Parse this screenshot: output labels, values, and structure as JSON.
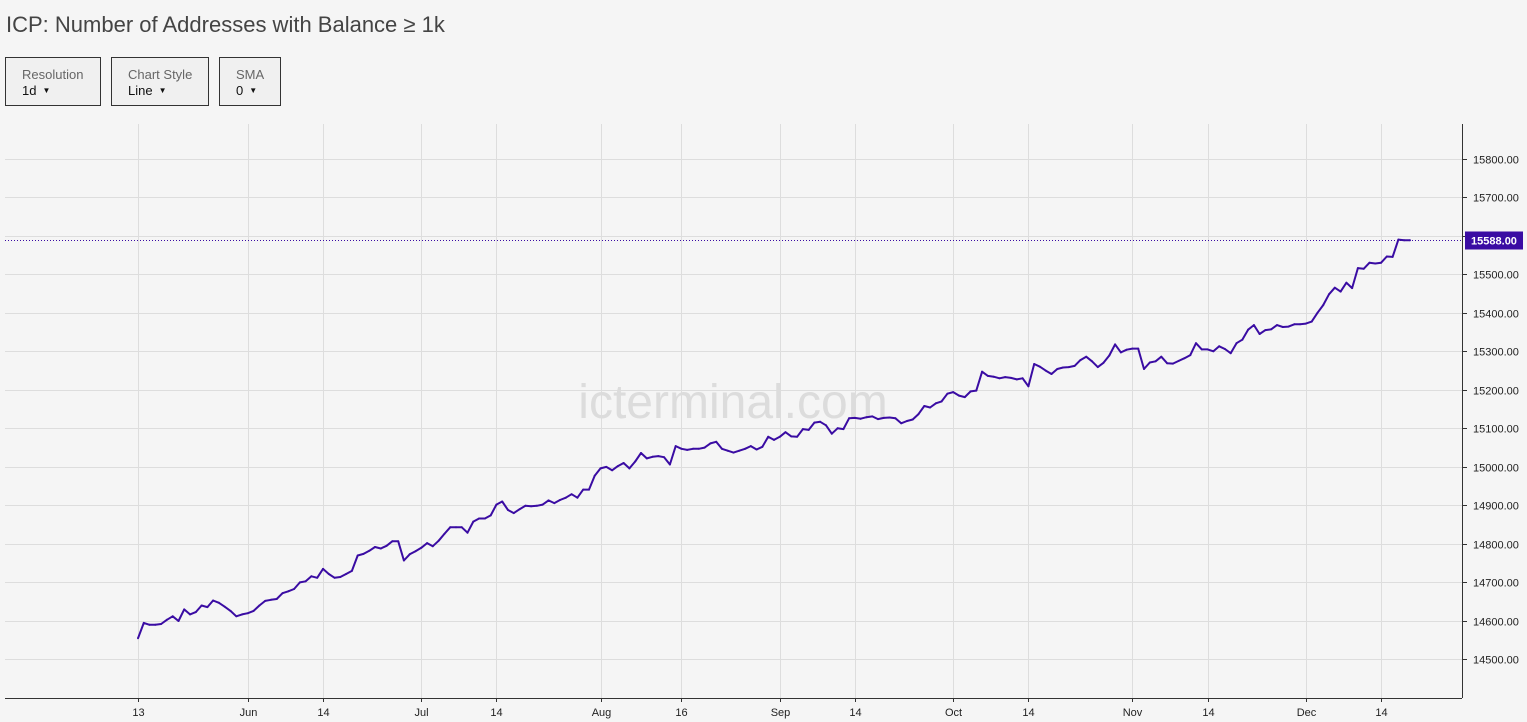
{
  "title": "ICP: Number of Addresses with Balance ≥ 1k",
  "controls": [
    {
      "label": "Resolution",
      "value": "1d"
    },
    {
      "label": "Chart Style",
      "value": "Line"
    },
    {
      "label": "SMA",
      "value": "0"
    }
  ],
  "watermark": "icterminal.com",
  "colors": {
    "line": "#3a0ca3",
    "current_label_bg": "#3a0ca3",
    "grid": "#dddddd"
  },
  "chart_data": {
    "type": "line",
    "title": "ICP: Number of Addresses with Balance ≥ 1k",
    "x_ticks": [
      {
        "day": 0,
        "label": "13"
      },
      {
        "day": 19,
        "label": "Jun"
      },
      {
        "day": 32,
        "label": "14"
      },
      {
        "day": 49,
        "label": "Jul"
      },
      {
        "day": 62,
        "label": "14"
      },
      {
        "day": 80,
        "label": "Aug"
      },
      {
        "day": 94,
        "label": "16"
      },
      {
        "day": 111,
        "label": "Sep"
      },
      {
        "day": 124,
        "label": "14"
      },
      {
        "day": 141,
        "label": "Oct"
      },
      {
        "day": 154,
        "label": "14"
      },
      {
        "day": 172,
        "label": "Nov"
      },
      {
        "day": 185,
        "label": "14"
      },
      {
        "day": 202,
        "label": "Dec"
      },
      {
        "day": 215,
        "label": "14"
      }
    ],
    "y_ticks": [
      14500,
      14600,
      14700,
      14800,
      14900,
      15000,
      15100,
      15200,
      15300,
      15400,
      15500,
      15600,
      15700,
      15800
    ],
    "y_tick_labels": [
      "14500.00",
      "14600.00",
      "14700.00",
      "14800.00",
      "14900.00",
      "15000.00",
      "15100.00",
      "15200.00",
      "15300.00",
      "15400.00",
      "15500.00",
      "15600.00",
      "15700.00",
      "15800.00"
    ],
    "ylim": [
      14400,
      15890
    ],
    "xlim": [
      -23,
      229
    ],
    "current_value": 15588,
    "current_label": "15588.00",
    "grid": true,
    "series": [
      {
        "points": [
          [
            0,
            14555
          ],
          [
            1,
            14595
          ],
          [
            2,
            14590
          ],
          [
            3,
            14590
          ],
          [
            4,
            14592
          ],
          [
            5,
            14603
          ],
          [
            6,
            14612
          ],
          [
            7,
            14600
          ],
          [
            8,
            14630
          ],
          [
            9,
            14617
          ],
          [
            10,
            14623
          ],
          [
            11,
            14640
          ],
          [
            12,
            14636
          ],
          [
            13,
            14653
          ],
          [
            14,
            14647
          ],
          [
            15,
            14637
          ],
          [
            16,
            14626
          ],
          [
            17,
            14612
          ],
          [
            18,
            14617
          ],
          [
            19,
            14620
          ],
          [
            20,
            14626
          ],
          [
            21,
            14640
          ],
          [
            22,
            14652
          ],
          [
            23,
            14655
          ],
          [
            24,
            14657
          ],
          [
            25,
            14672
          ],
          [
            26,
            14677
          ],
          [
            27,
            14683
          ],
          [
            28,
            14700
          ],
          [
            29,
            14703
          ],
          [
            30,
            14716
          ],
          [
            31,
            14712
          ],
          [
            32,
            14735
          ],
          [
            33,
            14722
          ],
          [
            34,
            14712
          ],
          [
            35,
            14714
          ],
          [
            36,
            14722
          ],
          [
            37,
            14730
          ],
          [
            38,
            14770
          ],
          [
            39,
            14774
          ],
          [
            40,
            14782
          ],
          [
            41,
            14792
          ],
          [
            42,
            14788
          ],
          [
            43,
            14795
          ],
          [
            44,
            14807
          ],
          [
            45,
            14807
          ],
          [
            46,
            14757
          ],
          [
            47,
            14773
          ],
          [
            48,
            14781
          ],
          [
            49,
            14790
          ],
          [
            50,
            14802
          ],
          [
            51,
            14794
          ],
          [
            52,
            14808
          ],
          [
            53,
            14826
          ],
          [
            54,
            14843
          ],
          [
            55,
            14843
          ],
          [
            56,
            14843
          ],
          [
            57,
            14829
          ],
          [
            58,
            14858
          ],
          [
            59,
            14866
          ],
          [
            60,
            14866
          ],
          [
            61,
            14874
          ],
          [
            62,
            14902
          ],
          [
            63,
            14910
          ],
          [
            64,
            14888
          ],
          [
            65,
            14880
          ],
          [
            66,
            14890
          ],
          [
            67,
            14899
          ],
          [
            68,
            14898
          ],
          [
            69,
            14899
          ],
          [
            70,
            14902
          ],
          [
            71,
            14913
          ],
          [
            72,
            14906
          ],
          [
            73,
            14914
          ],
          [
            74,
            14920
          ],
          [
            75,
            14929
          ],
          [
            76,
            14920
          ],
          [
            77,
            14941
          ],
          [
            78,
            14941
          ],
          [
            79,
            14977
          ],
          [
            80,
            14996
          ],
          [
            81,
            15000
          ],
          [
            82,
            14991
          ],
          [
            83,
            15002
          ],
          [
            84,
            15010
          ],
          [
            85,
            14996
          ],
          [
            86,
            15014
          ],
          [
            87,
            15036
          ],
          [
            88,
            15022
          ],
          [
            89,
            15026
          ],
          [
            90,
            15028
          ],
          [
            91,
            15025
          ],
          [
            92,
            15006
          ],
          [
            93,
            15054
          ],
          [
            94,
            15047
          ],
          [
            95,
            15044
          ],
          [
            96,
            15047
          ],
          [
            97,
            15047
          ],
          [
            98,
            15050
          ],
          [
            99,
            15061
          ],
          [
            100,
            15065
          ],
          [
            101,
            15047
          ],
          [
            102,
            15042
          ],
          [
            103,
            15037
          ],
          [
            104,
            15042
          ],
          [
            105,
            15047
          ],
          [
            106,
            15054
          ],
          [
            107,
            15045
          ],
          [
            108,
            15052
          ],
          [
            109,
            15078
          ],
          [
            110,
            15070
          ],
          [
            111,
            15078
          ],
          [
            112,
            15090
          ],
          [
            113,
            15079
          ],
          [
            114,
            15078
          ],
          [
            115,
            15098
          ],
          [
            116,
            15096
          ],
          [
            117,
            15115
          ],
          [
            118,
            15117
          ],
          [
            119,
            15108
          ],
          [
            120,
            15086
          ],
          [
            121,
            15100
          ],
          [
            122,
            15098
          ],
          [
            123,
            15126
          ],
          [
            124,
            15127
          ],
          [
            125,
            15125
          ],
          [
            126,
            15129
          ],
          [
            127,
            15131
          ],
          [
            128,
            15124
          ],
          [
            129,
            15127
          ],
          [
            130,
            15128
          ],
          [
            131,
            15126
          ],
          [
            132,
            15113
          ],
          [
            133,
            15119
          ],
          [
            134,
            15123
          ],
          [
            135,
            15137
          ],
          [
            136,
            15158
          ],
          [
            137,
            15154
          ],
          [
            138,
            15165
          ],
          [
            139,
            15170
          ],
          [
            140,
            15190
          ],
          [
            141,
            15194
          ],
          [
            142,
            15185
          ],
          [
            143,
            15181
          ],
          [
            144,
            15196
          ],
          [
            145,
            15198
          ],
          [
            146,
            15247
          ],
          [
            147,
            15236
          ],
          [
            148,
            15234
          ],
          [
            149,
            15230
          ],
          [
            150,
            15233
          ],
          [
            151,
            15231
          ],
          [
            152,
            15227
          ],
          [
            153,
            15230
          ],
          [
            154,
            15209
          ],
          [
            155,
            15267
          ],
          [
            156,
            15260
          ],
          [
            157,
            15250
          ],
          [
            158,
            15241
          ],
          [
            159,
            15254
          ],
          [
            160,
            15258
          ],
          [
            161,
            15259
          ],
          [
            162,
            15262
          ],
          [
            163,
            15277
          ],
          [
            164,
            15286
          ],
          [
            165,
            15274
          ],
          [
            166,
            15259
          ],
          [
            167,
            15270
          ],
          [
            168,
            15289
          ],
          [
            169,
            15318
          ],
          [
            170,
            15297
          ],
          [
            171,
            15304
          ],
          [
            172,
            15307
          ],
          [
            173,
            15307
          ],
          [
            174,
            15254
          ],
          [
            175,
            15271
          ],
          [
            176,
            15274
          ],
          [
            177,
            15286
          ],
          [
            178,
            15269
          ],
          [
            179,
            15268
          ],
          [
            180,
            15275
          ],
          [
            181,
            15282
          ],
          [
            182,
            15290
          ],
          [
            183,
            15321
          ],
          [
            184,
            15305
          ],
          [
            185,
            15305
          ],
          [
            186,
            15300
          ],
          [
            187,
            15313
          ],
          [
            188,
            15306
          ],
          [
            189,
            15295
          ],
          [
            190,
            15321
          ],
          [
            191,
            15330
          ],
          [
            192,
            15356
          ],
          [
            193,
            15368
          ],
          [
            194,
            15345
          ],
          [
            195,
            15355
          ],
          [
            196,
            15357
          ],
          [
            197,
            15368
          ],
          [
            198,
            15363
          ],
          [
            199,
            15364
          ],
          [
            200,
            15370
          ],
          [
            201,
            15370
          ],
          [
            202,
            15372
          ],
          [
            203,
            15377
          ],
          [
            204,
            15400
          ],
          [
            205,
            15420
          ],
          [
            206,
            15448
          ],
          [
            207,
            15465
          ],
          [
            208,
            15455
          ],
          [
            209,
            15478
          ],
          [
            210,
            15464
          ],
          [
            211,
            15516
          ],
          [
            212,
            15514
          ],
          [
            213,
            15530
          ],
          [
            214,
            15528
          ],
          [
            215,
            15530
          ],
          [
            216,
            15546
          ],
          [
            217,
            15545
          ],
          [
            218,
            15590
          ],
          [
            219,
            15588
          ],
          [
            220,
            15588
          ]
        ]
      }
    ]
  }
}
